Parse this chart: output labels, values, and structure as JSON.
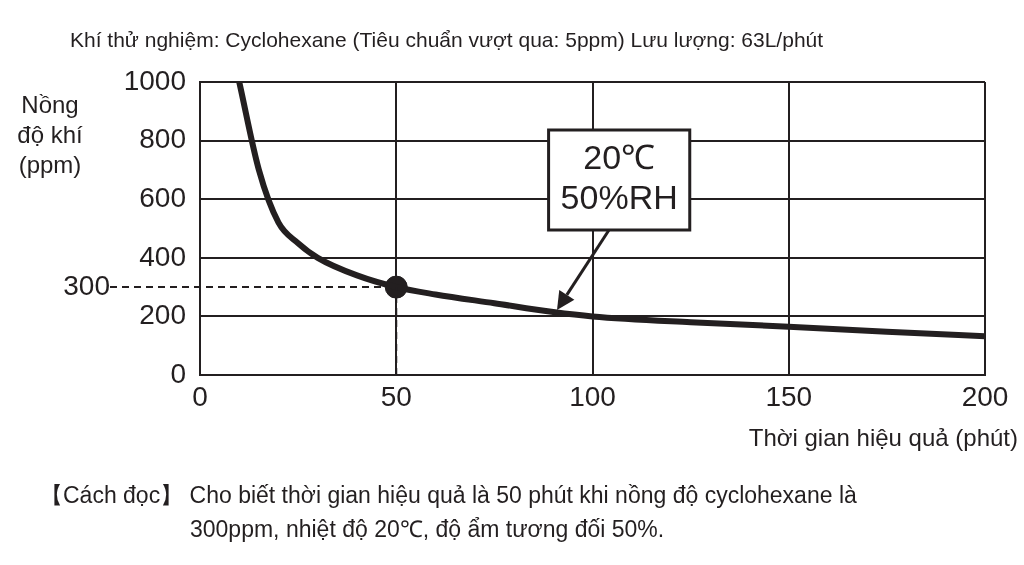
{
  "chart_data": {
    "type": "line",
    "title": "Khí thử nghiệm: Cyclohexane (Tiêu chuẩn vượt qua: 5ppm)  Lưu lượng: 63L/phút",
    "xlabel": "Thời gian hiệu quả (phút)",
    "ylabel": "Nồng độ khí (ppm)",
    "xlim": [
      0,
      200
    ],
    "xticks": [
      0,
      50,
      100,
      150,
      200
    ],
    "ylim": [
      0,
      1000
    ],
    "yticks": [
      0,
      200,
      400,
      600,
      800,
      1000
    ],
    "grid": true,
    "legend": false,
    "series": [
      {
        "color": "#231f20",
        "x": [
          10,
          15,
          20,
          25,
          30,
          40,
          50,
          60,
          75,
          90,
          100,
          125,
          150,
          175,
          200
        ],
        "values": [
          1000,
          700,
          520,
          450,
          400,
          340,
          300,
          275,
          245,
          215,
          200,
          180,
          165,
          148,
          132
        ]
      },
      {
        "type": "scatter",
        "color": "#231f20",
        "x": [
          50
        ],
        "values": [
          300
        ]
      }
    ],
    "ref_lines": [
      {
        "axis": "y",
        "value": 300,
        "label": "300",
        "line_style": "dashed"
      },
      {
        "axis": "x",
        "value": 50,
        "line_style": "dashed"
      }
    ],
    "annotations": [
      {
        "text": "20℃\n50%RH",
        "x": 91,
        "y": 222
      },
      "【Cách đọc】 Cho biết thời gian hiệu quả là 50 phút khi nồng độ cyclohexane là 300ppm, nhiệt độ 20℃, độ ẩm tương đối 50%."
    ]
  }
}
